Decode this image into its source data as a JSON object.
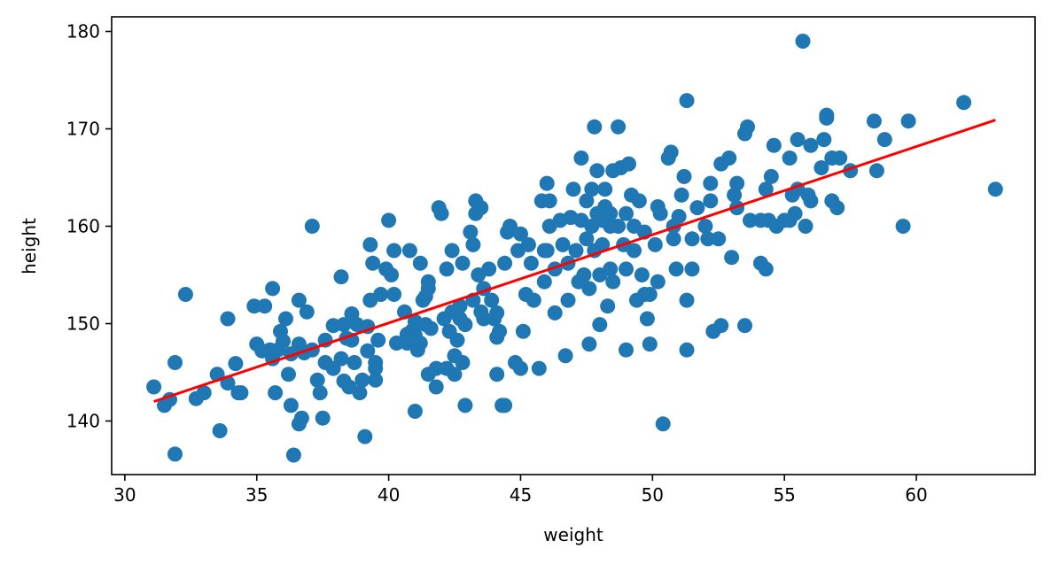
{
  "chart_data": {
    "type": "scatter",
    "title": "",
    "xlabel": "weight",
    "ylabel": "height",
    "xlim": [
      29.5,
      64.5
    ],
    "ylim": [
      134.5,
      181.5
    ],
    "x_ticks": [
      30,
      35,
      40,
      45,
      50,
      55,
      60
    ],
    "y_ticks": [
      140,
      150,
      160,
      170,
      180
    ],
    "grid": false,
    "colors": {
      "points": "#1f77b4",
      "fit_line": "#ff0000"
    },
    "series": [
      {
        "type": "scatter",
        "points": [
          [
            31.1,
            143.5
          ],
          [
            31.5,
            141.6
          ],
          [
            31.7,
            142.2
          ],
          [
            31.9,
            146
          ],
          [
            31.9,
            136.6
          ],
          [
            32.3,
            153
          ],
          [
            32.7,
            142.3
          ],
          [
            33,
            142.9
          ],
          [
            33.5,
            144.8
          ],
          [
            33.6,
            139
          ],
          [
            33.9,
            150.5
          ],
          [
            33.9,
            143.9
          ],
          [
            34.2,
            145.9
          ],
          [
            34.3,
            142.9
          ],
          [
            34.4,
            142.9
          ],
          [
            34.9,
            151.8
          ],
          [
            35,
            147.9
          ],
          [
            35.2,
            147.2
          ],
          [
            35.3,
            151.8
          ],
          [
            35.5,
            147.3
          ],
          [
            35.6,
            146.4
          ],
          [
            35.6,
            153.6
          ],
          [
            35.7,
            142.9
          ],
          [
            35.8,
            147.3
          ],
          [
            35.9,
            149.2
          ],
          [
            36,
            148.2
          ],
          [
            36.1,
            150.5
          ],
          [
            36.2,
            144.8
          ],
          [
            36.3,
            146.9
          ],
          [
            36.3,
            141.6
          ],
          [
            36.4,
            136.5
          ],
          [
            36.6,
            152.4
          ],
          [
            36.6,
            147.9
          ],
          [
            36.7,
            140.3
          ],
          [
            36.6,
            139.7
          ],
          [
            36.8,
            147
          ],
          [
            36.9,
            151.2
          ],
          [
            37.1,
            147.3
          ],
          [
            37.1,
            160
          ],
          [
            37.3,
            144.2
          ],
          [
            37.4,
            142.9
          ],
          [
            37.5,
            140.3
          ],
          [
            37.6,
            148.3
          ],
          [
            37.6,
            146
          ],
          [
            37.9,
            149.8
          ],
          [
            37.9,
            145.4
          ],
          [
            38.2,
            154.8
          ],
          [
            38.2,
            146.4
          ],
          [
            38.3,
            144.1
          ],
          [
            38.3,
            149.9
          ],
          [
            38.4,
            148.5
          ],
          [
            38.5,
            143.5
          ],
          [
            38.6,
            151
          ],
          [
            38.6,
            148.3
          ],
          [
            38.7,
            146
          ],
          [
            38.8,
            149.9
          ],
          [
            38.9,
            142.9
          ],
          [
            39,
            144.2
          ],
          [
            39.1,
            138.4
          ],
          [
            39.2,
            149.7
          ],
          [
            39.2,
            147.2
          ],
          [
            39.3,
            158.1
          ],
          [
            39.3,
            152.4
          ],
          [
            39.4,
            156.2
          ],
          [
            39.5,
            145.4
          ],
          [
            39.5,
            146
          ],
          [
            39.6,
            148.3
          ],
          [
            39.5,
            144.2
          ],
          [
            39.7,
            153
          ],
          [
            39.9,
            155.6
          ],
          [
            40,
            160.6
          ],
          [
            40.1,
            155
          ],
          [
            40.2,
            153
          ],
          [
            40.2,
            157.5
          ],
          [
            40.3,
            148
          ],
          [
            40.6,
            151.2
          ],
          [
            40.7,
            148.9
          ],
          [
            40.7,
            148
          ],
          [
            40.8,
            157.5
          ],
          [
            40.9,
            149.3
          ],
          [
            41,
            150.2
          ],
          [
            41,
            141
          ],
          [
            41,
            148.8
          ],
          [
            41.1,
            147.3
          ],
          [
            41.2,
            156.2
          ],
          [
            41.2,
            148
          ],
          [
            41.3,
            152.4
          ],
          [
            41.4,
            152.8
          ],
          [
            41.4,
            149.9
          ],
          [
            41.5,
            153.6
          ],
          [
            41.5,
            154.3
          ],
          [
            41.5,
            144.8
          ],
          [
            41.6,
            149.5
          ],
          [
            41.8,
            143.5
          ],
          [
            41.8,
            145.4
          ],
          [
            41.9,
            161.9
          ],
          [
            42,
            161.3
          ],
          [
            42.1,
            150.5
          ],
          [
            42.2,
            155.6
          ],
          [
            42.2,
            145.4
          ],
          [
            42.3,
            149.2
          ],
          [
            42.4,
            151.2
          ],
          [
            42.4,
            157.5
          ],
          [
            42.5,
            144.8
          ],
          [
            42.5,
            146.7
          ],
          [
            42.6,
            148.3
          ],
          [
            42.7,
            151.8
          ],
          [
            42.7,
            150.5
          ],
          [
            42.8,
            156.2
          ],
          [
            42.8,
            146
          ],
          [
            42.9,
            149.9
          ],
          [
            42.9,
            141.6
          ],
          [
            43.1,
            159.4
          ],
          [
            43.2,
            152.4
          ],
          [
            43.2,
            158.1
          ],
          [
            43.3,
            162.6
          ],
          [
            43.3,
            161.3
          ],
          [
            43.4,
            155
          ],
          [
            43.5,
            151.2
          ],
          [
            43.5,
            161.9
          ],
          [
            43.6,
            150.5
          ],
          [
            43.6,
            153.6
          ],
          [
            43.8,
            155.6
          ],
          [
            43.9,
            152.4
          ],
          [
            44,
            150.5
          ],
          [
            44.1,
            148.6
          ],
          [
            44.1,
            151.1
          ],
          [
            44.1,
            144.8
          ],
          [
            44.2,
            149.2
          ],
          [
            44.3,
            141.6
          ],
          [
            44.4,
            141.6
          ],
          [
            44.4,
            156.2
          ],
          [
            44.5,
            159.4
          ],
          [
            44.6,
            160
          ],
          [
            44.8,
            146
          ],
          [
            44.9,
            157.5
          ],
          [
            45,
            145.4
          ],
          [
            45,
            159.2
          ],
          [
            45.1,
            149.2
          ],
          [
            45.2,
            153
          ],
          [
            45.3,
            158.1
          ],
          [
            45.4,
            156.2
          ],
          [
            45.5,
            152.4
          ],
          [
            45.7,
            145.4
          ],
          [
            45.8,
            162.6
          ],
          [
            45.9,
            157.5
          ],
          [
            45.9,
            154.3
          ],
          [
            46,
            164.4
          ],
          [
            46,
            157.5
          ],
          [
            46.1,
            162.6
          ],
          [
            46.1,
            160
          ],
          [
            46.3,
            155.6
          ],
          [
            46.3,
            151.1
          ],
          [
            46.5,
            160.6
          ],
          [
            46.6,
            158.1
          ],
          [
            46.7,
            146.7
          ],
          [
            46.8,
            156.2
          ],
          [
            46.8,
            152.4
          ],
          [
            46.9,
            160.9
          ],
          [
            47,
            163.8
          ],
          [
            47.1,
            157.5
          ],
          [
            47.2,
            154.3
          ],
          [
            47.3,
            160.6
          ],
          [
            47.3,
            167
          ],
          [
            47.4,
            155
          ],
          [
            47.5,
            162.6
          ],
          [
            47.5,
            158.7
          ],
          [
            47.6,
            153.6
          ],
          [
            47.6,
            147.9
          ],
          [
            47.7,
            160
          ],
          [
            47.7,
            163.8
          ],
          [
            47.8,
            157.5
          ],
          [
            47.8,
            170.2
          ],
          [
            47.9,
            161.3
          ],
          [
            47.9,
            165.7
          ],
          [
            48,
            155
          ],
          [
            48,
            149.9
          ],
          [
            48.1,
            160.6
          ],
          [
            48.1,
            158.1
          ],
          [
            48.2,
            163.8
          ],
          [
            48.2,
            162
          ],
          [
            48.3,
            151.8
          ],
          [
            48.4,
            155.6
          ],
          [
            48.4,
            160
          ],
          [
            48.4,
            161.3
          ],
          [
            48.5,
            154.3
          ],
          [
            48.5,
            165.7
          ],
          [
            48.7,
            170.2
          ],
          [
            48.7,
            160
          ],
          [
            48.8,
            166
          ],
          [
            48.9,
            158.1
          ],
          [
            49,
            155.6
          ],
          [
            49,
            161.3
          ],
          [
            49,
            147.3
          ],
          [
            49.1,
            166.4
          ],
          [
            49.2,
            163.2
          ],
          [
            49.3,
            160
          ],
          [
            49.3,
            157.5
          ],
          [
            49.4,
            152.4
          ],
          [
            49.5,
            162.6
          ],
          [
            49.6,
            155
          ],
          [
            49.7,
            153
          ],
          [
            49.7,
            159.4
          ],
          [
            49.8,
            150.5
          ],
          [
            49.9,
            147.9
          ],
          [
            49.9,
            153
          ],
          [
            50.1,
            158.1
          ],
          [
            50.2,
            154.3
          ],
          [
            50.2,
            162
          ],
          [
            50.3,
            161.3
          ],
          [
            50.4,
            139.7
          ],
          [
            50.6,
            167
          ],
          [
            50.7,
            167.6
          ],
          [
            50.8,
            160
          ],
          [
            50.8,
            158.7
          ],
          [
            50.9,
            155.6
          ],
          [
            51,
            161
          ],
          [
            51.1,
            163.2
          ],
          [
            51.2,
            165.1
          ],
          [
            51.3,
            147.3
          ],
          [
            51.3,
            152.4
          ],
          [
            51.3,
            172.9
          ],
          [
            51.5,
            155.6
          ],
          [
            51.5,
            158.7
          ],
          [
            51.7,
            161.9
          ],
          [
            52,
            160
          ],
          [
            52.1,
            158.7
          ],
          [
            52.2,
            164.4
          ],
          [
            52.2,
            162.6
          ],
          [
            52.3,
            149.2
          ],
          [
            52.5,
            158.7
          ],
          [
            52.6,
            166.4
          ],
          [
            52.6,
            149.8
          ],
          [
            52.9,
            167
          ],
          [
            53,
            156.8
          ],
          [
            53.1,
            163.2
          ],
          [
            53.2,
            161.9
          ],
          [
            53.2,
            164.4
          ],
          [
            53.5,
            149.8
          ],
          [
            53.5,
            169.5
          ],
          [
            53.6,
            170.2
          ],
          [
            53.7,
            160.6
          ],
          [
            54.1,
            156.2
          ],
          [
            54.1,
            160.6
          ],
          [
            54.3,
            155.6
          ],
          [
            54.3,
            163.8
          ],
          [
            54.4,
            160.6
          ],
          [
            54.5,
            165.1
          ],
          [
            54.6,
            168.3
          ],
          [
            54.7,
            160
          ],
          [
            55,
            160.6
          ],
          [
            55.2,
            167
          ],
          [
            55.2,
            160.6
          ],
          [
            55.3,
            163.2
          ],
          [
            55.4,
            161.3
          ],
          [
            55.5,
            163.8
          ],
          [
            55.5,
            168.9
          ],
          [
            55.7,
            179
          ],
          [
            55.8,
            160
          ],
          [
            55.9,
            163.2
          ],
          [
            56,
            162.6
          ],
          [
            56,
            168.3
          ],
          [
            56.4,
            166
          ],
          [
            56.5,
            168.9
          ],
          [
            56.6,
            171.4
          ],
          [
            56.6,
            171.1
          ],
          [
            56.8,
            167
          ],
          [
            56.8,
            162.6
          ],
          [
            57,
            161.9
          ],
          [
            57.1,
            167
          ],
          [
            57.5,
            165.7
          ],
          [
            58.4,
            170.8
          ],
          [
            58.5,
            165.7
          ],
          [
            58.8,
            168.9
          ],
          [
            59.5,
            160
          ],
          [
            59.7,
            170.8
          ],
          [
            61.8,
            172.7
          ],
          [
            63,
            163.8
          ]
        ]
      },
      {
        "type": "line",
        "points": [
          [
            31.1,
            142.0
          ],
          [
            63.0,
            170.9
          ]
        ]
      }
    ]
  }
}
